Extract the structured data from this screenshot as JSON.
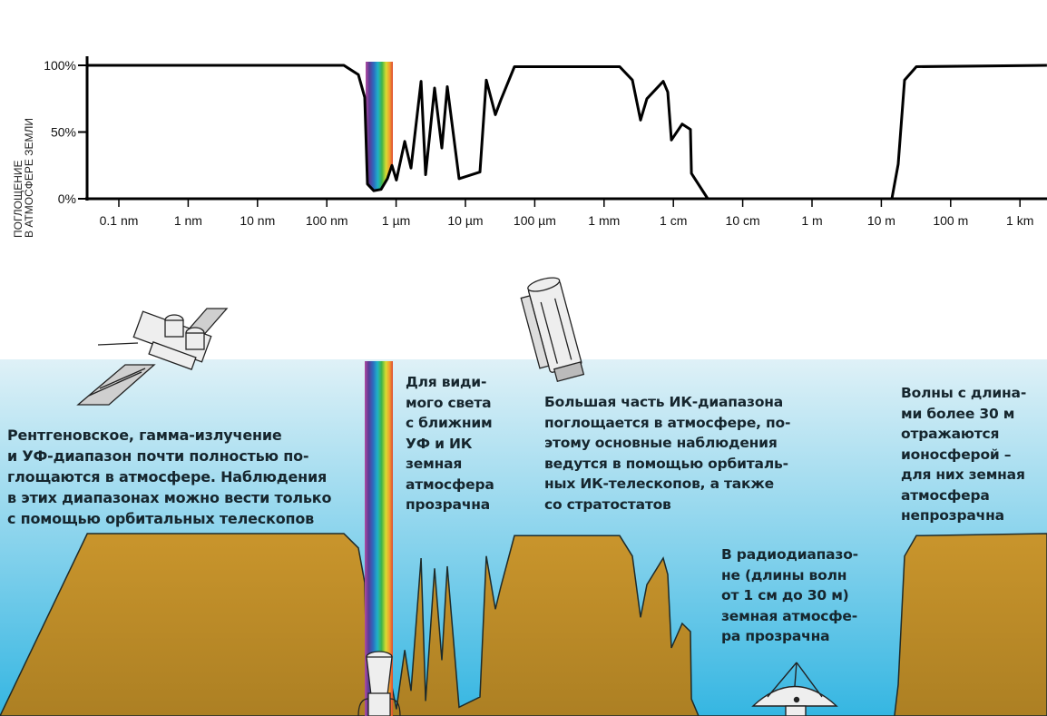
{
  "chart_data": {
    "type": "line",
    "ylabel_lines": [
      "ПОГЛОЩЕНИЕ",
      "В АТМОСФЕРЕ ЗЕМЛИ"
    ],
    "x_scale": "log",
    "x_unit": "m",
    "xlim": [
      3.5e-11,
      2450
    ],
    "ylim": [
      0,
      100
    ],
    "y_ticks": [
      {
        "value": 0,
        "label": "0%"
      },
      {
        "value": 50,
        "label": "50%"
      },
      {
        "value": 100,
        "label": "100%"
      }
    ],
    "x_ticks": [
      {
        "value": 1e-10,
        "label": "0.1 nm"
      },
      {
        "value": 1e-09,
        "label": "1 nm"
      },
      {
        "value": 1e-08,
        "label": "10 nm"
      },
      {
        "value": 1e-07,
        "label": "100 nm"
      },
      {
        "value": 1e-06,
        "label": "1 µm"
      },
      {
        "value": 1e-05,
        "label": "10 µm"
      },
      {
        "value": 0.0001,
        "label": "100 µm"
      },
      {
        "value": 0.001,
        "label": "1 mm"
      },
      {
        "value": 0.01,
        "label": "1 cm"
      },
      {
        "value": 0.1,
        "label": "10 cm"
      },
      {
        "value": 1,
        "label": "1 m"
      },
      {
        "value": 10,
        "label": "10 m"
      },
      {
        "value": 100,
        "label": "100 m"
      },
      {
        "value": 1000,
        "label": "1 km"
      }
    ],
    "grid": false,
    "series": [
      {
        "points": [
          [
            3.5e-11,
            100
          ],
          [
            1.76e-07,
            100
          ],
          [
            2.85e-07,
            93
          ],
          [
            3.52e-07,
            76
          ],
          [
            3.86e-07,
            11
          ],
          [
            4.76e-07,
            6
          ],
          [
            6.07e-07,
            7
          ],
          [
            7.49e-07,
            15
          ],
          [
            8.71e-07,
            25
          ],
          [
            1.01e-06,
            14
          ],
          [
            1.33e-06,
            43
          ],
          [
            1.64e-06,
            23
          ],
          [
            2.29e-06,
            88
          ],
          [
            2.66e-06,
            18
          ],
          [
            3.59e-06,
            83
          ],
          [
            4.57e-06,
            38
          ],
          [
            5.47e-06,
            84
          ],
          [
            8.1e-06,
            15
          ],
          [
            1.62e-05,
            20
          ],
          [
            2e-05,
            89
          ],
          [
            2.7e-05,
            63
          ],
          [
            3.24e-05,
            74
          ],
          [
            5.09e-05,
            99
          ],
          [
            0.00168,
            99
          ],
          [
            0.00256,
            89
          ],
          [
            0.00336,
            59
          ],
          [
            0.00415,
            75
          ],
          [
            0.00713,
            88
          ],
          [
            0.0083,
            80
          ],
          [
            0.00936,
            44
          ],
          [
            0.0134,
            56
          ],
          [
            0.0176,
            52
          ],
          [
            0.0182,
            19
          ],
          [
            0.0313,
            0
          ],
          [
            14.2,
            0
          ],
          [
            17.5,
            26
          ],
          [
            21.6,
            89
          ],
          [
            32.0,
            99
          ],
          [
            2450,
            100
          ]
        ]
      }
    ],
    "visible_band": [
      3.8e-07,
      8.5e-07
    ]
  },
  "notes": {
    "xray": [
      "Рентгеновское, гамма-излучение",
      "и УФ-диапазон почти полностью по-",
      "глощаются в атмосфере. Наблюдения",
      "в этих диапазонах можно вести только",
      "с помощью орбитальных телескопов"
    ],
    "visible": [
      "Для види-",
      "мого света",
      "с ближним",
      "УФ и ИК",
      "земная",
      "атмосфера",
      "прозрачна"
    ],
    "infrared": [
      "Большая часть ИК-диапазона",
      "поглощается в атмосфере, по-",
      "этому основные наблюдения",
      "ведутся в помощью орбиталь-",
      "ных ИК-телескопов, а также",
      "со стратостатов"
    ],
    "long_waves": [
      "Волны с длина-",
      "ми более 30 м",
      "отражаются",
      "ионосферой –",
      "для них земная",
      "атмосфера",
      "непрозрачна"
    ],
    "radio": [
      "В радиодиапазо-",
      "не (длины волн",
      "от 1 см до 30 м)",
      "земная атмосфе-",
      "ра прозрачна"
    ]
  },
  "colors": {
    "sky_top": "#dff1f7",
    "sky_bottom": "#35b6e2",
    "ground_top": "#c9952c",
    "ground_bottom": "#a97d22",
    "curve": "#000000",
    "text": "#16262e"
  },
  "icons": [
    "x-ray-satellite-icon",
    "infrared-space-telescope-icon",
    "ground-optical-telescope-icon",
    "radio-dish-icon"
  ]
}
